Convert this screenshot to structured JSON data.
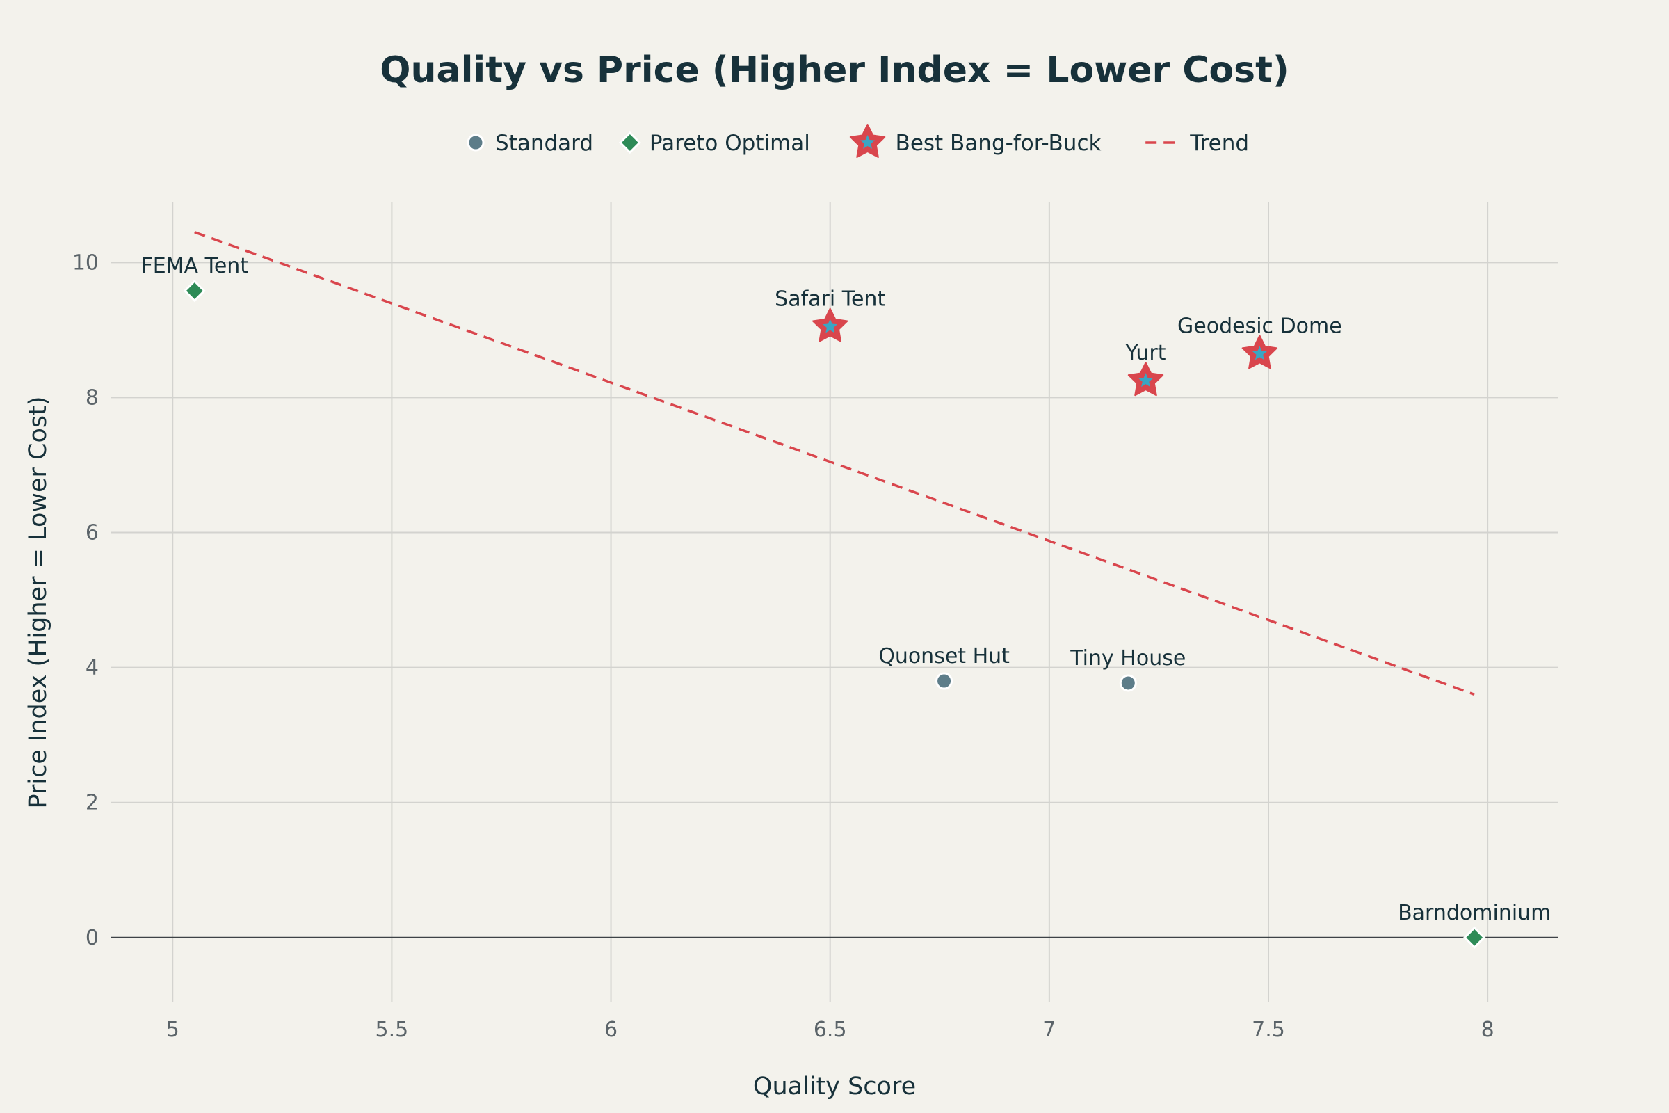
{
  "chart_data": {
    "type": "scatter",
    "title": "Quality vs Price (Higher Index = Lower Cost)",
    "xlabel": "Quality Score",
    "ylabel": "Price Index (Higher = Lower Cost)",
    "xlim": [
      4.86,
      8.16
    ],
    "ylim": [
      -0.95,
      10.9
    ],
    "x_ticks": [
      5,
      5.5,
      6,
      6.5,
      7,
      7.5,
      8
    ],
    "x_tick_labels": [
      "5",
      "5.5",
      "6",
      "6.5",
      "7",
      "7.5",
      "8"
    ],
    "y_ticks": [
      0,
      2,
      4,
      6,
      8,
      10
    ],
    "y_tick_labels": [
      "0",
      "2",
      "4",
      "6",
      "8",
      "10"
    ],
    "grid": true,
    "legend_position": "top-center",
    "legend": [
      {
        "name": "Standard",
        "symbol": "circle"
      },
      {
        "name": "Pareto Optimal",
        "symbol": "diamond"
      },
      {
        "name": "Best Bang-for-Buck",
        "symbol": "star"
      },
      {
        "name": "Trend",
        "symbol": "dash"
      }
    ],
    "series": [
      {
        "name": "Standard",
        "symbol": "circle",
        "color": "#5d7d89",
        "points": [
          {
            "label": "Quonset Hut",
            "x": 6.76,
            "y": 3.8
          },
          {
            "label": "Tiny House",
            "x": 7.18,
            "y": 3.77
          }
        ]
      },
      {
        "name": "Pareto Optimal",
        "symbol": "diamond",
        "color": "#2e8b57",
        "points": [
          {
            "label": "FEMA Tent",
            "x": 5.05,
            "y": 9.58
          },
          {
            "label": "Barndominium",
            "x": 7.97,
            "y": 0.0
          }
        ]
      },
      {
        "name": "Best Bang-for-Buck",
        "symbol": "star",
        "color": "#d9464d",
        "inner_color": "#3aa6c4",
        "points": [
          {
            "label": "Safari Tent",
            "x": 6.5,
            "y": 9.05
          },
          {
            "label": "Yurt",
            "x": 7.22,
            "y": 8.25
          },
          {
            "label": "Geodesic Dome",
            "x": 7.48,
            "y": 8.65
          }
        ]
      }
    ],
    "trend": {
      "name": "Trend",
      "color": "#d9464d",
      "style": "dashed",
      "x": [
        5.05,
        7.97
      ],
      "y": [
        10.45,
        3.6
      ]
    }
  }
}
